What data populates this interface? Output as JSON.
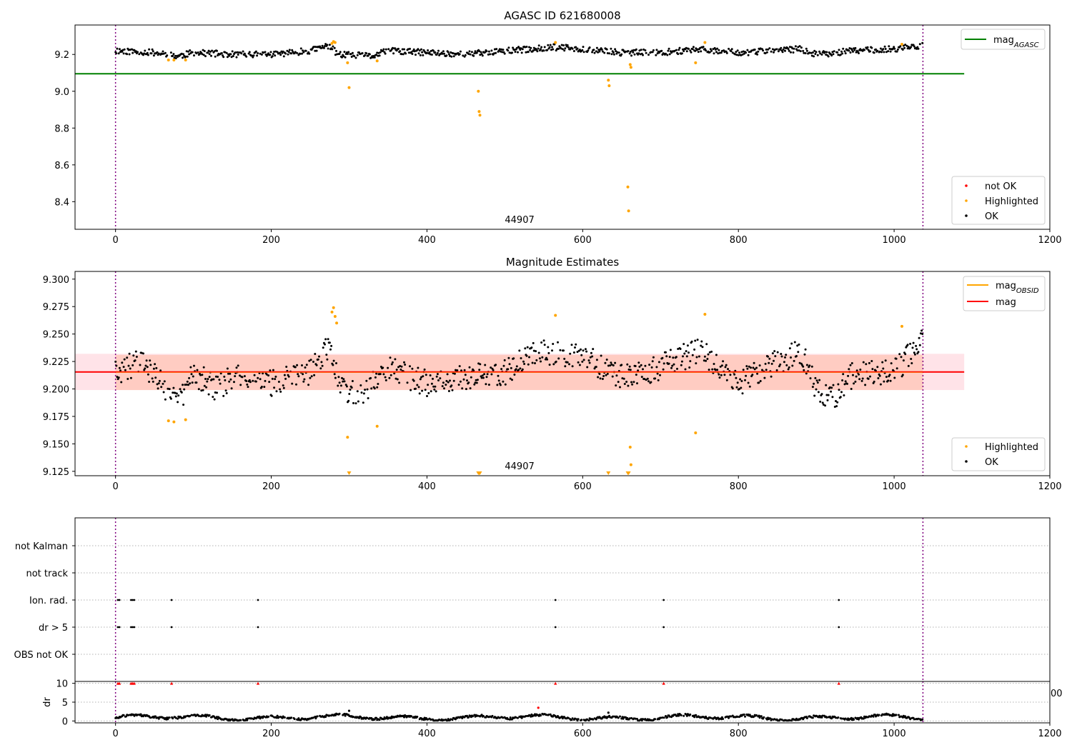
{
  "chart_data": [
    {
      "type": "scatter",
      "title": "AGASC ID 621680008",
      "annotation": "44907",
      "xlim": [
        -52,
        1200
      ],
      "ylim": [
        8.25,
        9.36
      ],
      "xticks": [
        0,
        200,
        400,
        600,
        800,
        1000,
        1200
      ],
      "yticks": [
        8.4,
        8.6,
        8.8,
        9.0,
        9.2
      ],
      "xtick_labels": [
        "0",
        "200",
        "400",
        "600",
        "800",
        "1000",
        "1200"
      ],
      "ytick_labels": [
        "8.4",
        "8.6",
        "8.8",
        "9.0",
        "9.2"
      ],
      "vlines": [
        0,
        1037
      ],
      "hline": {
        "name": "mag",
        "subscript": "AGASC",
        "y": 9.095,
        "x0": -52,
        "x1": 1090,
        "color": "#008000"
      },
      "legend_lines": [
        {
          "name": "mag",
          "subscript": "AGASC",
          "color": "#008000"
        }
      ],
      "legend_points": [
        {
          "name": "not OK",
          "color": "#ff0000"
        },
        {
          "name": "Highlighted",
          "color": "#ffa500"
        },
        {
          "name": "OK",
          "color": "#000000"
        }
      ],
      "ok_baseline": [
        [
          0,
          9.22
        ],
        [
          50,
          9.21
        ],
        [
          80,
          9.19
        ],
        [
          100,
          9.21
        ],
        [
          150,
          9.2
        ],
        [
          200,
          9.2
        ],
        [
          250,
          9.22
        ],
        [
          275,
          9.25
        ],
        [
          285,
          9.2
        ],
        [
          330,
          9.19
        ],
        [
          350,
          9.22
        ],
        [
          400,
          9.21
        ],
        [
          450,
          9.2
        ],
        [
          500,
          9.22
        ],
        [
          540,
          9.23
        ],
        [
          560,
          9.24
        ],
        [
          600,
          9.23
        ],
        [
          650,
          9.21
        ],
        [
          700,
          9.21
        ],
        [
          750,
          9.23
        ],
        [
          800,
          9.21
        ],
        [
          850,
          9.22
        ],
        [
          880,
          9.23
        ],
        [
          900,
          9.2
        ],
        [
          950,
          9.22
        ],
        [
          1000,
          9.23
        ],
        [
          1037,
          9.25
        ]
      ],
      "highlighted": [
        {
          "x": 68,
          "y": 9.17
        },
        {
          "x": 75,
          "y": 9.17
        },
        {
          "x": 90,
          "y": 9.17
        },
        {
          "x": 278,
          "y": 9.26
        },
        {
          "x": 280,
          "y": 9.27
        },
        {
          "x": 282,
          "y": 9.265
        },
        {
          "x": 298,
          "y": 9.155
        },
        {
          "x": 300,
          "y": 9.02
        },
        {
          "x": 336,
          "y": 9.165
        },
        {
          "x": 466,
          "y": 9.0
        },
        {
          "x": 467,
          "y": 8.89
        },
        {
          "x": 468,
          "y": 8.87
        },
        {
          "x": 565,
          "y": 9.265
        },
        {
          "x": 633,
          "y": 9.06
        },
        {
          "x": 634,
          "y": 9.03
        },
        {
          "x": 658,
          "y": 8.48
        },
        {
          "x": 659,
          "y": 8.35
        },
        {
          "x": 661,
          "y": 9.145
        },
        {
          "x": 662,
          "y": 9.13
        },
        {
          "x": 745,
          "y": 9.155
        },
        {
          "x": 757,
          "y": 9.265
        },
        {
          "x": 1010,
          "y": 9.255
        }
      ]
    },
    {
      "type": "scatter",
      "title": "Magnitude Estimates",
      "annotation": "44907",
      "xlim": [
        -52,
        1200
      ],
      "ylim": [
        9.121,
        9.307
      ],
      "xticks": [
        0,
        200,
        400,
        600,
        800,
        1000,
        1200
      ],
      "yticks": [
        9.125,
        9.15,
        9.175,
        9.2,
        9.225,
        9.25,
        9.275,
        9.3
      ],
      "xtick_labels": [
        "0",
        "200",
        "400",
        "600",
        "800",
        "1000",
        "1200"
      ],
      "ytick_labels": [
        "9.125",
        "9.150",
        "9.175",
        "9.200",
        "9.225",
        "9.250",
        "9.275",
        "9.300"
      ],
      "vlines": [
        0,
        1037
      ],
      "mag_line": {
        "name": "mag",
        "y": 9.2155,
        "color": "#ff0000"
      },
      "mag_band": [
        9.199,
        9.232
      ],
      "obsid_band": [
        9.199,
        9.231
      ],
      "legend_lines": [
        {
          "name": "mag",
          "subscript": "OBSID",
          "color": "#ffa500"
        },
        {
          "name": "mag",
          "subscript": "",
          "color": "#ff0000"
        }
      ],
      "legend_points": [
        {
          "name": "Highlighted",
          "color": "#ffa500"
        },
        {
          "name": "OK",
          "color": "#000000"
        }
      ],
      "ok_baseline": [
        [
          0,
          9.215
        ],
        [
          30,
          9.225
        ],
        [
          60,
          9.205
        ],
        [
          80,
          9.185
        ],
        [
          100,
          9.215
        ],
        [
          130,
          9.2
        ],
        [
          160,
          9.215
        ],
        [
          200,
          9.205
        ],
        [
          250,
          9.215
        ],
        [
          275,
          9.24
        ],
        [
          290,
          9.2
        ],
        [
          320,
          9.195
        ],
        [
          345,
          9.22
        ],
        [
          400,
          9.205
        ],
        [
          450,
          9.21
        ],
        [
          500,
          9.215
        ],
        [
          540,
          9.235
        ],
        [
          600,
          9.23
        ],
        [
          650,
          9.21
        ],
        [
          700,
          9.22
        ],
        [
          750,
          9.235
        ],
        [
          800,
          9.205
        ],
        [
          850,
          9.225
        ],
        [
          880,
          9.235
        ],
        [
          900,
          9.2
        ],
        [
          920,
          9.19
        ],
        [
          950,
          9.215
        ],
        [
          1000,
          9.215
        ],
        [
          1037,
          9.245
        ]
      ],
      "highlighted": [
        {
          "x": 68,
          "y": 9.171
        },
        {
          "x": 75,
          "y": 9.17
        },
        {
          "x": 90,
          "y": 9.172
        },
        {
          "x": 278,
          "y": 9.27
        },
        {
          "x": 280,
          "y": 9.274
        },
        {
          "x": 282,
          "y": 9.266
        },
        {
          "x": 284,
          "y": 9.26
        },
        {
          "x": 298,
          "y": 9.156
        },
        {
          "x": 336,
          "y": 9.166
        },
        {
          "x": 565,
          "y": 9.267
        },
        {
          "x": 661,
          "y": 9.147
        },
        {
          "x": 662,
          "y": 9.131
        },
        {
          "x": 745,
          "y": 9.16
        },
        {
          "x": 757,
          "y": 9.268
        },
        {
          "x": 1010,
          "y": 9.257
        }
      ],
      "clipped_low": [
        300,
        466,
        467,
        468,
        633,
        658,
        659
      ]
    },
    {
      "type": "scatter",
      "xlim": [
        -52,
        1200
      ],
      "categories": [
        "not Kalman",
        "not track",
        "Ion. rad.",
        "dr > 5",
        "OBS not OK"
      ],
      "vlines": [
        0,
        1037
      ],
      "flags": {
        "Ion. rad.": [
          3,
          5,
          20,
          22,
          24,
          72,
          183,
          565,
          704,
          929
        ],
        "dr > 5": [
          3,
          5,
          20,
          22,
          24,
          72,
          183,
          565,
          704,
          929
        ]
      }
    },
    {
      "type": "scatter",
      "ylabel": "dr",
      "xlim": [
        -52,
        1200
      ],
      "ylim": [
        -0.5,
        10.5
      ],
      "yticks": [
        0,
        5,
        10
      ],
      "ytick_labels": [
        "0",
        "5",
        "10"
      ],
      "xticks": [
        0,
        200,
        400,
        600,
        800,
        1000,
        1200
      ],
      "xtick_labels": [
        "0",
        "200",
        "400",
        "600",
        "800",
        "1000",
        "1200"
      ],
      "overflow_tick_label": "00",
      "vlines": [
        0,
        1037
      ],
      "capped_markers": [
        3,
        5,
        20,
        22,
        24,
        72,
        183,
        565,
        704,
        929
      ],
      "outliers": [
        {
          "x": 300,
          "y": 2.7
        },
        {
          "x": 543,
          "y": 3.5
        },
        {
          "x": 633,
          "y": 2.2
        }
      ],
      "typical_range": [
        0.2,
        2.2
      ]
    }
  ]
}
